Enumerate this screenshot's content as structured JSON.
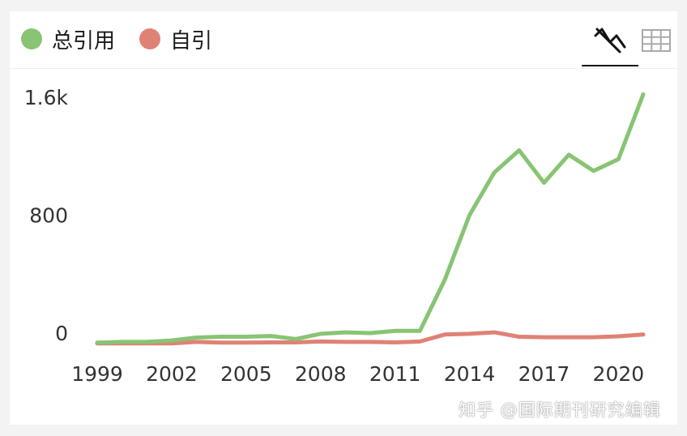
{
  "legend": [
    {
      "label": "总引用",
      "color": "#88c473"
    },
    {
      "label": "自引",
      "color": "#df8275"
    }
  ],
  "toolbar": {
    "icons": [
      "line-chart-icon",
      "table-icon"
    ],
    "active": "line-chart-icon"
  },
  "watermark": "知乎 @国际期刊研究编辑",
  "chart_data": {
    "type": "line",
    "x": [
      1999,
      2000,
      2001,
      2002,
      2003,
      2004,
      2005,
      2006,
      2007,
      2008,
      2009,
      2010,
      2011,
      2012,
      2013,
      2014,
      2015,
      2016,
      2017,
      2018,
      2019,
      2020,
      2021
    ],
    "xticks": [
      "1999",
      "2002",
      "2005",
      "2008",
      "2011",
      "2014",
      "2017",
      "2020"
    ],
    "yticks": [
      "0",
      "800",
      "1.6k"
    ],
    "ylim": [
      0,
      1600
    ],
    "series": [
      {
        "name": "总引用",
        "color": "#88c473",
        "values": [
          -65,
          -60,
          -60,
          -50,
          -30,
          -25,
          -25,
          -20,
          -40,
          -5,
          5,
          0,
          15,
          15,
          360,
          800,
          1090,
          1240,
          1020,
          1210,
          1100,
          1180,
          1620
        ]
      },
      {
        "name": "自引",
        "color": "#df8275",
        "values": [
          -70,
          -70,
          -70,
          -70,
          -60,
          -65,
          -65,
          -63,
          -63,
          -57,
          -60,
          -60,
          -63,
          -57,
          -10,
          -5,
          5,
          -25,
          -28,
          -28,
          -28,
          -22,
          -10
        ]
      }
    ]
  }
}
